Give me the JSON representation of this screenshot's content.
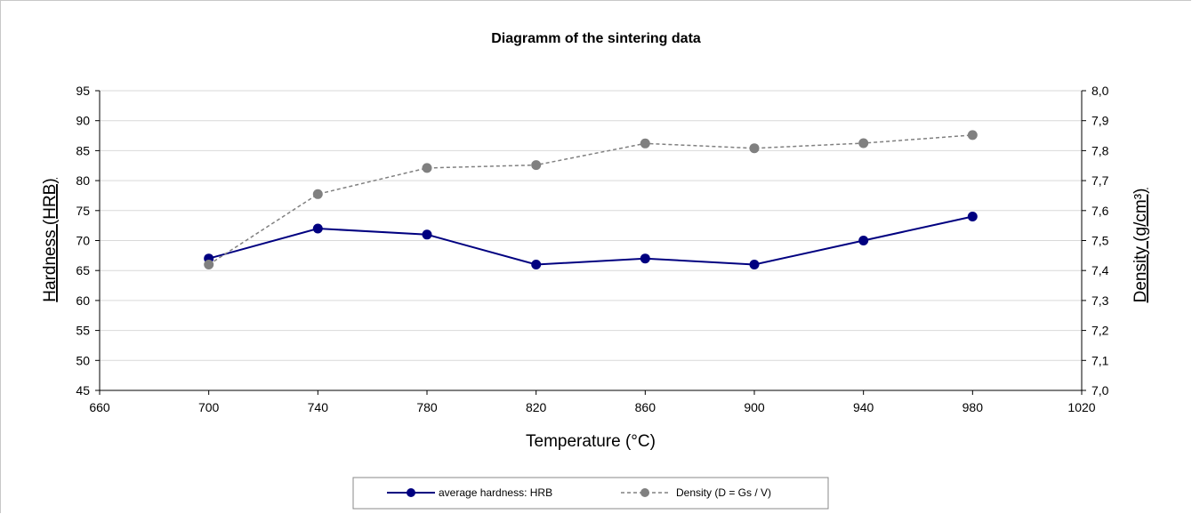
{
  "chart_data": {
    "type": "line",
    "title": "Diagramm of the sintering data",
    "xlabel": "Temperature (°C)",
    "ylabel": "Hardness (HRB)",
    "y2label": "Density (g/cm³)",
    "xlim": [
      660,
      1020
    ],
    "ylim": [
      45,
      95
    ],
    "y2lim": [
      7.0,
      8.0
    ],
    "x_ticks": [
      "660",
      "700",
      "740",
      "780",
      "820",
      "860",
      "900",
      "940",
      "980",
      "1020"
    ],
    "y_ticks": [
      "45",
      "50",
      "55",
      "60",
      "65",
      "70",
      "75",
      "80",
      "85",
      "90",
      "95"
    ],
    "y2_ticks": [
      "7,0",
      "7,1",
      "7,2",
      "7,3",
      "7,4",
      "7,5",
      "7,6",
      "7,7",
      "7,8",
      "7,9",
      "8,0"
    ],
    "grid": true,
    "legend_position": "bottom",
    "series": [
      {
        "name": "average hardness: HRB",
        "axis": "left",
        "color": "#000080",
        "style": "solid",
        "x": [
          700,
          740,
          780,
          820,
          860,
          900,
          940,
          980
        ],
        "values": [
          67,
          72,
          71,
          66,
          67,
          66,
          70,
          74
        ]
      },
      {
        "name": "Density (D = Gs / V)",
        "axis": "right",
        "color": "#808080",
        "style": "dashed",
        "x": [
          700,
          740,
          780,
          820,
          860,
          900,
          940,
          980
        ],
        "values": [
          7.42,
          7.655,
          7.742,
          7.752,
          7.824,
          7.808,
          7.825,
          7.852
        ]
      }
    ]
  }
}
